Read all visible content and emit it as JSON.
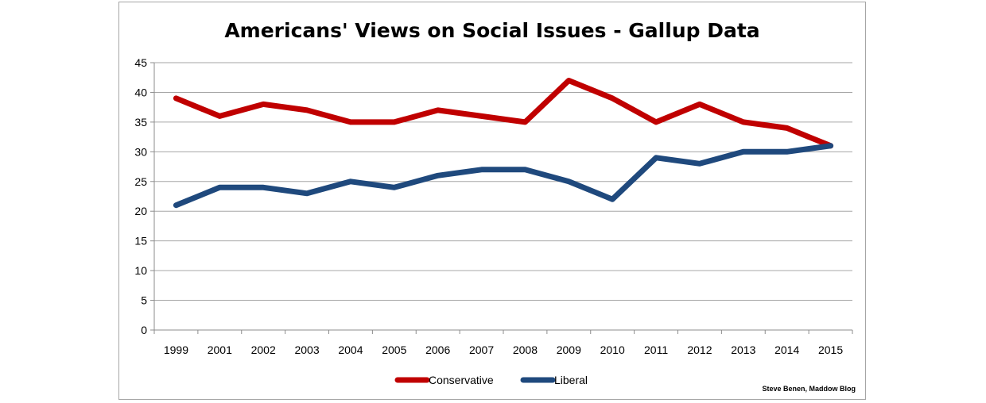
{
  "chart_data": {
    "type": "line",
    "title": "Americans' Views on Social Issues - Gallup Data",
    "xlabel": "",
    "ylabel": "",
    "categories": [
      "1999",
      "2001",
      "2002",
      "2003",
      "2004",
      "2005",
      "2006",
      "2007",
      "2008",
      "2009",
      "2010",
      "2011",
      "2012",
      "2013",
      "2014",
      "2015"
    ],
    "ylim": [
      0,
      45
    ],
    "yticks": [
      0,
      5,
      10,
      15,
      20,
      25,
      30,
      35,
      40,
      45
    ],
    "grid": true,
    "legend_position": "bottom",
    "series": [
      {
        "name": "Conservative",
        "color": "#c00000",
        "values": [
          39,
          36,
          38,
          37,
          35,
          35,
          37,
          36,
          35,
          42,
          39,
          35,
          38,
          35,
          34,
          31
        ]
      },
      {
        "name": "Liberal",
        "color": "#1f497d",
        "values": [
          21,
          24,
          24,
          23,
          25,
          24,
          26,
          27,
          27,
          25,
          22,
          29,
          28,
          30,
          30,
          31
        ]
      }
    ],
    "credit": "Steve Benen, Maddow Blog"
  }
}
